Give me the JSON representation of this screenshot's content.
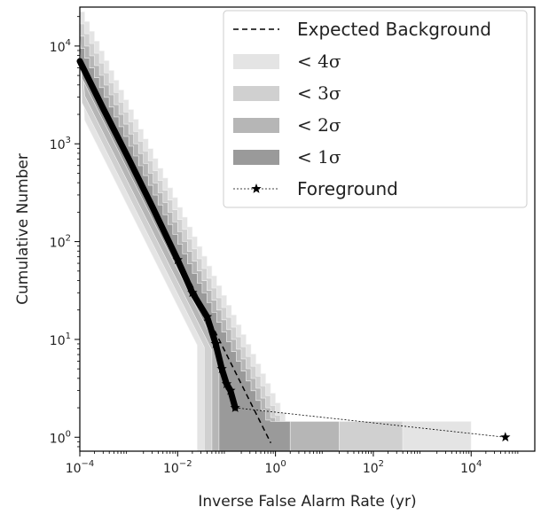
{
  "chart_data": {
    "type": "line",
    "xscale": "log",
    "yscale": "log",
    "xlim": [
      0.0001,
      200000
    ],
    "ylim": [
      0.72,
      25000
    ],
    "xlabel": "Inverse False Alarm Rate (yr)",
    "ylabel": "Cumulative Number",
    "grid": false,
    "legend_position": "top-right",
    "x_ticks": [
      {
        "value": 0.0001,
        "base": "10",
        "exp": "−4"
      },
      {
        "value": 0.01,
        "base": "10",
        "exp": "−2"
      },
      {
        "value": 1,
        "base": "10",
        "exp": "0"
      },
      {
        "value": 100,
        "base": "10",
        "exp": "2"
      },
      {
        "value": 10000,
        "base": "10",
        "exp": "4"
      }
    ],
    "y_ticks": [
      {
        "value": 1,
        "base": "10",
        "exp": "0"
      },
      {
        "value": 10,
        "base": "10",
        "exp": "1"
      },
      {
        "value": 100,
        "base": "10",
        "exp": "2"
      },
      {
        "value": 1000,
        "base": "10",
        "exp": "3"
      },
      {
        "value": 10000,
        "base": "10",
        "exp": "4"
      }
    ],
    "legend": [
      {
        "label": "Expected Background",
        "kind": "dashed-line",
        "color": "#000000"
      },
      {
        "label": "< 4σ",
        "kind": "band",
        "color": "#e4e4e4"
      },
      {
        "label": "< 3σ",
        "kind": "band",
        "color": "#d0d0d0"
      },
      {
        "label": "< 2σ",
        "kind": "band",
        "color": "#b6b6b6"
      },
      {
        "label": "< 1σ",
        "kind": "band",
        "color": "#9a9a9a"
      },
      {
        "label": "Foreground",
        "kind": "star-line",
        "color": "#000000"
      }
    ],
    "expected_background": {
      "x": [
        0.0001,
        0.001,
        0.01,
        0.1,
        0.3,
        0.8
      ],
      "y": [
        7000,
        700,
        70,
        7,
        2.33,
        0.875
      ]
    },
    "bands": [
      {
        "name": "< 4σ",
        "color": "#e4e4e4",
        "upper_x_end": 10000,
        "lower_x_end": 0.025
      },
      {
        "name": "< 3σ",
        "color": "#d0d0d0",
        "upper_x_end": 400,
        "lower_x_end": 0.035
      },
      {
        "name": "< 2σ",
        "color": "#b6b6b6",
        "upper_x_end": 20,
        "lower_x_end": 0.05
      },
      {
        "name": "< 1σ",
        "color": "#9a9a9a",
        "upper_x_end": 2,
        "lower_x_end": 0.07
      }
    ],
    "foreground": {
      "name": "Foreground",
      "x": [
        0.0001,
        0.0003,
        0.001,
        0.003,
        0.01,
        0.02,
        0.04,
        0.06,
        0.08,
        0.1,
        0.12,
        0.15,
        50000
      ],
      "y": [
        7000,
        2300,
        700,
        230,
        65,
        30,
        17,
        9,
        5,
        3.5,
        3,
        2,
        1
      ]
    }
  }
}
